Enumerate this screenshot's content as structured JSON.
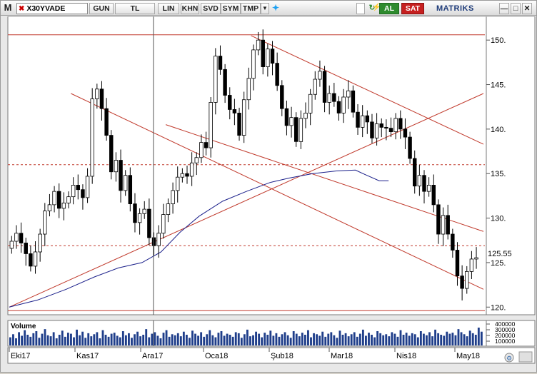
{
  "toolbar": {
    "app_letter": "M",
    "symbol": "X30YVADE",
    "period": "GUN",
    "currency": "TL",
    "buttons": [
      "LIN",
      "KHN",
      "SVD",
      "SYM",
      "TMP"
    ],
    "buy_label": "AL",
    "sell_label": "SAT",
    "brand": "MATRIKS",
    "icons": [
      "close-icon",
      "dropdown-arrow-icon",
      "twitter-icon",
      "checkbox-icon",
      "refresh-icon",
      "link-icon",
      "minimize-icon",
      "restore-icon",
      "close-window-icon"
    ]
  },
  "chart_data": {
    "type": "candlestick",
    "price_ticks": [
      150,
      145,
      140,
      135,
      130,
      125,
      120
    ],
    "last_price_label": "125.55",
    "x_labels": [
      "Eki17",
      "Kas17",
      "Ara17",
      "Oca18",
      "Şub18",
      "Mar18",
      "Nis18",
      "May18"
    ],
    "ylim": [
      119.3,
      152.5
    ],
    "horizontal_levels": [
      {
        "value": 150.6,
        "style": "solid",
        "color": "#c0392b"
      },
      {
        "value": 136.0,
        "style": "dashed",
        "color": "#c0392b"
      },
      {
        "value": 126.9,
        "style": "dashed",
        "color": "#c0392b"
      },
      {
        "value": 119.6,
        "style": "solid",
        "color": "#c0392b"
      }
    ],
    "trendlines": [
      {
        "from": [
          0,
          120.0
        ],
        "to": [
          200,
          144.0
        ]
      },
      {
        "from": [
          26,
          144.0
        ],
        "to": [
          200,
          122.0
        ]
      },
      {
        "from": [
          66,
          140.5
        ],
        "to": [
          200,
          128.5
        ]
      },
      {
        "from": [
          102,
          150.5
        ],
        "to": [
          200,
          138.3
        ]
      }
    ],
    "moving_average": {
      "color": "#1a1f8a",
      "points": [
        [
          0,
          120.0
        ],
        [
          12,
          120.8
        ],
        [
          24,
          122.0
        ],
        [
          36,
          123.4
        ],
        [
          46,
          124.4
        ],
        [
          56,
          125.0
        ],
        [
          64,
          126.2
        ],
        [
          72,
          128.4
        ],
        [
          80,
          130.2
        ],
        [
          90,
          131.9
        ],
        [
          100,
          133.0
        ],
        [
          110,
          134.0
        ],
        [
          118,
          134.5
        ],
        [
          128,
          135.0
        ],
        [
          138,
          135.3
        ],
        [
          146,
          135.4
        ],
        [
          150,
          134.9
        ],
        [
          156,
          134.2
        ],
        [
          160,
          134.2
        ]
      ]
    },
    "cursor_index": 29,
    "volume": {
      "label": "Volume",
      "ticks": [
        "400000",
        "300000",
        "200000",
        "100000"
      ],
      "values": [
        160000,
        220000,
        140000,
        260000,
        190000,
        300000,
        210000,
        170000,
        240000,
        280000,
        150000,
        230000,
        320000,
        200000,
        180000,
        260000,
        140000,
        210000,
        290000,
        170000,
        250000,
        230000,
        160000,
        310000,
        200000,
        270000,
        150000,
        240000,
        180000,
        220000,
        260000,
        140000,
        300000,
        210000,
        170000,
        230000,
        250000,
        190000,
        160000,
        280000,
        200000,
        240000,
        150000,
        220000,
        270000,
        180000,
        210000,
        320000,
        160000,
        230000,
        260000,
        190000,
        140000,
        250000,
        300000,
        170000,
        220000,
        200000,
        240000,
        180000,
        270000,
        210000,
        150000,
        290000,
        230000,
        190000,
        260000,
        170000,
        220000,
        300000,
        200000,
        160000,
        250000,
        280000,
        190000,
        230000,
        210000,
        170000,
        260000,
        240000,
        150000,
        220000,
        310000,
        180000,
        200000,
        270000,
        230000,
        160000,
        250000,
        210000,
        290000,
        190000,
        240000,
        170000,
        220000,
        260000,
        200000,
        150000,
        280000,
        230000,
        180000,
        250000,
        210000,
        300000,
        160000,
        240000,
        220000,
        190000,
        270000,
        170000,
        230000,
        260000,
        200000,
        150000,
        290000,
        210000,
        240000,
        180000,
        220000,
        260000,
        170000,
        230000,
        310000,
        190000,
        250000,
        210000,
        160000,
        280000,
        240000,
        200000,
        220000,
        180000,
        260000,
        230000,
        170000,
        300000,
        210000,
        250000,
        190000,
        240000,
        220000,
        160000,
        280000,
        230000,
        200000,
        260000,
        180000,
        310000,
        240000,
        210000,
        190000,
        270000,
        230000,
        250000,
        200000,
        320000,
        260000,
        220000,
        180000,
        290000,
        240000,
        210000,
        350000,
        270000
      ]
    },
    "closes": [
      127.4,
      128.3,
      127.2,
      126.0,
      124.6,
      126.2,
      128.2,
      130.8,
      131.5,
      133.0,
      131.1,
      131.7,
      132.4,
      133.7,
      133.2,
      132.3,
      134.7,
      143.4,
      144.5,
      142.3,
      139.3,
      135.2,
      136.5,
      133.1,
      134.8,
      131.6,
      129.5,
      130.5,
      131.0,
      127.8,
      126.9,
      128.3,
      130.4,
      131.6,
      133.1,
      134.6,
      135.0,
      134.7,
      136.2,
      136.8,
      138.5,
      137.9,
      143.0,
      148.2,
      146.7,
      143.8,
      142.2,
      141.8,
      139.3,
      143.3,
      145.7,
      148.9,
      150.0,
      147.0,
      149.0,
      147.4,
      144.9,
      142.3,
      140.4,
      141.3,
      138.6,
      141.2,
      141.8,
      143.9,
      145.6,
      146.5,
      143.0,
      144.0,
      143.1,
      141.8,
      143.6,
      144.3,
      141.9,
      140.2,
      141.5,
      140.8,
      139.0,
      140.6,
      140.2,
      140.1,
      139.7,
      141.2,
      140.0,
      139.1,
      136.7,
      133.6,
      134.8,
      133.0,
      133.7,
      131.5,
      128.2,
      130.3,
      128.2,
      126.4,
      123.5,
      122.1,
      124.0,
      125.4,
      125.55
    ],
    "ohlc_note": "candles rendered from closes; wick ranges derived in script"
  }
}
